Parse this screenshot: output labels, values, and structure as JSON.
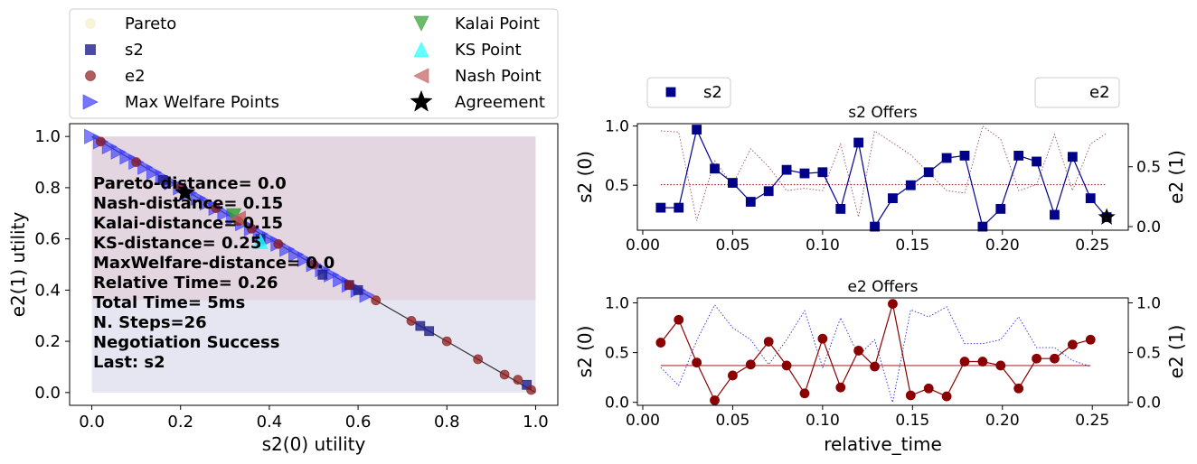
{
  "legend_main": {
    "items": [
      {
        "label": "Pareto",
        "marker": "circle",
        "color": "#f5f0c8"
      },
      {
        "label": "s2",
        "marker": "square",
        "color": "#1e1e8c"
      },
      {
        "label": "e2",
        "marker": "circle",
        "color": "#8b1a1a"
      },
      {
        "label": "Max Welfare Points",
        "marker": "triangle-right",
        "color": "#3a3aff"
      },
      {
        "label": "Kalai Point",
        "marker": "triangle-down",
        "color": "#2e9e2e"
      },
      {
        "label": "KS Point",
        "marker": "triangle-up",
        "color": "#22ffff"
      },
      {
        "label": "Nash Point",
        "marker": "triangle-left",
        "color": "#c45c5c"
      },
      {
        "label": "Agreement",
        "marker": "star",
        "color": "#000000"
      }
    ]
  },
  "chart_data": [
    {
      "type": "scatter",
      "xlabel": "s2(0) utility",
      "ylabel": "e2(1) utility",
      "xlim": [
        -0.05,
        1.05
      ],
      "ylim": [
        -0.05,
        1.05
      ],
      "xticks": [
        0.0,
        0.2,
        0.4,
        0.6,
        0.8,
        1.0
      ],
      "yticks": [
        0.0,
        0.2,
        0.4,
        0.6,
        0.8,
        1.0
      ],
      "tick_labels_x": [
        "0.0",
        "0.2",
        "0.4",
        "0.6",
        "0.8",
        "1.0"
      ],
      "tick_labels_y": [
        "0.0",
        "0.2",
        "0.4",
        "0.6",
        "0.8",
        "1.0"
      ],
      "regions": [
        {
          "x": [
            0.0,
            1.0
          ],
          "y": [
            0.0,
            0.36
          ],
          "color": "#e6e6f2"
        },
        {
          "x": [
            0.0,
            1.0
          ],
          "y": [
            0.36,
            1.0
          ],
          "color": "#e3d6e0"
        }
      ],
      "annotations": [
        "Pareto-distance=  0.0",
        "Nash-distance= 0.15",
        "Kalai-distance= 0.15",
        "KS-distance= 0.25",
        "MaxWelfare-distance= 0.0",
        "Relative Time= 0.26",
        "Total Time= 5ms",
        "N. Steps=26",
        "Negotiation Success",
        "Last: s2"
      ],
      "series": [
        {
          "name": "Max Welfare Points",
          "x": [
            0.0,
            0.02,
            0.04,
            0.06,
            0.08,
            0.1,
            0.12,
            0.14,
            0.16,
            0.18,
            0.2,
            0.22,
            0.24,
            0.26,
            0.28,
            0.3,
            0.32,
            0.34,
            0.36,
            0.38,
            0.4,
            0.42,
            0.44,
            0.46,
            0.48,
            0.5,
            0.52,
            0.54,
            0.56,
            0.58,
            0.6,
            0.62
          ],
          "y": [
            1.0,
            0.98,
            0.96,
            0.94,
            0.92,
            0.9,
            0.88,
            0.86,
            0.84,
            0.82,
            0.8,
            0.78,
            0.76,
            0.74,
            0.72,
            0.7,
            0.68,
            0.66,
            0.64,
            0.62,
            0.6,
            0.58,
            0.56,
            0.54,
            0.52,
            0.5,
            0.48,
            0.46,
            0.44,
            0.42,
            0.4,
            0.38
          ]
        },
        {
          "name": "s2",
          "x": [
            0.16,
            0.38,
            0.52,
            0.58,
            0.6,
            0.74,
            0.76,
            0.98
          ],
          "y": [
            0.83,
            0.6,
            0.46,
            0.42,
            0.4,
            0.26,
            0.24,
            0.03
          ]
        },
        {
          "name": "e2",
          "x": [
            0.02,
            0.1,
            0.2,
            0.28,
            0.33,
            0.36,
            0.42,
            0.5,
            0.58,
            0.64,
            0.72,
            0.8,
            0.87,
            0.93,
            0.96,
            0.99
          ],
          "y": [
            0.98,
            0.9,
            0.8,
            0.72,
            0.67,
            0.64,
            0.58,
            0.5,
            0.42,
            0.36,
            0.28,
            0.2,
            0.13,
            0.07,
            0.05,
            0.01
          ]
        },
        {
          "name": "Kalai Point",
          "x": [
            0.32
          ],
          "y": [
            0.69
          ]
        },
        {
          "name": "KS Point",
          "x": [
            0.38
          ],
          "y": [
            0.59
          ]
        },
        {
          "name": "Nash Point",
          "x": [
            0.33
          ],
          "y": [
            0.68
          ]
        },
        {
          "name": "Agreement",
          "x": [
            0.21
          ],
          "y": [
            0.78
          ]
        }
      ]
    },
    {
      "type": "line",
      "title": "s2 Offers",
      "ylabel": "s2 (0)",
      "ylabel_right": "e2 (1)",
      "legend_left": "s2",
      "legend_right": "e2",
      "xlim": [
        -0.003,
        0.27
      ],
      "ylim": [
        0.12,
        1.02
      ],
      "ylim_right": [
        -0.03,
        0.86
      ],
      "xticks": [
        0.0,
        0.05,
        0.1,
        0.15,
        0.2,
        0.25
      ],
      "tick_labels_x": [
        "0.00",
        "0.05",
        "0.10",
        "0.15",
        "0.20",
        "0.25"
      ],
      "yticks": [
        0.5,
        1.0
      ],
      "tick_labels_y": [
        "0.5",
        "1.0"
      ],
      "yticks_right": [
        0.0,
        0.5
      ],
      "tick_labels_right": [
        "0.0",
        "0.5"
      ],
      "x": [
        0.01,
        0.02,
        0.03,
        0.04,
        0.05,
        0.06,
        0.07,
        0.08,
        0.09,
        0.1,
        0.11,
        0.12,
        0.129,
        0.139,
        0.149,
        0.159,
        0.169,
        0.179,
        0.189,
        0.199,
        0.209,
        0.219,
        0.229,
        0.239,
        0.249,
        0.258
      ],
      "series": [
        {
          "name": "s2",
          "values": [
            0.31,
            0.31,
            0.97,
            0.64,
            0.52,
            0.36,
            0.45,
            0.63,
            0.6,
            0.61,
            0.3,
            0.86,
            0.15,
            0.39,
            0.5,
            0.61,
            0.73,
            0.75,
            0.15,
            0.3,
            0.75,
            0.7,
            0.25,
            0.74,
            0.39,
            0.23
          ]
        },
        {
          "name": "e2",
          "values": [
            0.8,
            0.79,
            0.05,
            0.55,
            0.35,
            0.65,
            0.5,
            0.3,
            0.32,
            0.3,
            0.69,
            0.08,
            0.8,
            0.7,
            0.6,
            0.45,
            0.3,
            0.28,
            0.84,
            0.73,
            0.3,
            0.35,
            0.77,
            0.3,
            0.69,
            0.78
          ]
        }
      ],
      "agreement": {
        "x": 0.258,
        "y": 0.23
      },
      "reference_line": {
        "axis": "right",
        "y": 0.35,
        "x": [
          0.01,
          0.258
        ]
      }
    },
    {
      "type": "line",
      "title": "e2 Offers",
      "xlabel": "relative_time",
      "ylabel": "s2 (0)",
      "ylabel_right": "e2 (1)",
      "xlim": [
        -0.003,
        0.27
      ],
      "ylim": [
        -0.03,
        1.05
      ],
      "ylim_right": [
        -0.03,
        1.05
      ],
      "xticks": [
        0.0,
        0.05,
        0.1,
        0.15,
        0.2,
        0.25
      ],
      "tick_labels_x": [
        "0.00",
        "0.05",
        "0.10",
        "0.15",
        "0.20",
        "0.25"
      ],
      "yticks": [
        0.0,
        0.5,
        1.0
      ],
      "tick_labels_y": [
        "0.0",
        "0.5",
        "1.0"
      ],
      "yticks_right": [
        0.0,
        0.5,
        1.0
      ],
      "tick_labels_right": [
        "0.0",
        "0.5",
        "1.0"
      ],
      "x": [
        0.01,
        0.02,
        0.03,
        0.04,
        0.05,
        0.06,
        0.07,
        0.08,
        0.09,
        0.1,
        0.11,
        0.12,
        0.129,
        0.139,
        0.149,
        0.159,
        0.169,
        0.179,
        0.189,
        0.199,
        0.209,
        0.219,
        0.229,
        0.239,
        0.249
      ],
      "series": [
        {
          "name": "e2",
          "values": [
            0.6,
            0.83,
            0.4,
            0.02,
            0.27,
            0.38,
            0.61,
            0.37,
            0.09,
            0.64,
            0.15,
            0.52,
            0.36,
            0.99,
            0.07,
            0.14,
            0.06,
            0.41,
            0.41,
            0.37,
            0.14,
            0.44,
            0.44,
            0.58,
            0.63
          ]
        },
        {
          "name": "s2",
          "values": [
            0.35,
            0.17,
            0.62,
            0.98,
            0.75,
            0.63,
            0.38,
            0.63,
            0.92,
            0.35,
            0.85,
            0.47,
            0.63,
            0.0,
            0.93,
            0.86,
            0.96,
            0.59,
            0.59,
            0.63,
            0.86,
            0.55,
            0.55,
            0.42,
            0.36
          ]
        }
      ],
      "reference_line": {
        "axis": "left",
        "y": 0.37,
        "x": [
          0.01,
          0.249
        ]
      }
    }
  ]
}
